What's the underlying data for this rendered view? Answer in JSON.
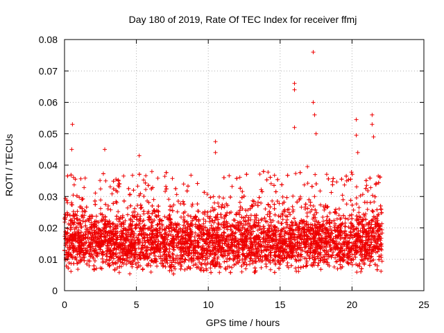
{
  "chart_data": {
    "type": "scatter",
    "title": "Day 180 of 2019, Rate Of TEC Index for receiver ffmj",
    "xlabel": "GPS time / hours",
    "ylabel": "ROTI / TECUs",
    "xlim": [
      0,
      25
    ],
    "ylim": [
      0,
      0.08
    ],
    "xticks": [
      "0",
      "5",
      "10",
      "15",
      "20",
      "25"
    ],
    "yticks": [
      "0",
      "0.01",
      "0.02",
      "0.03",
      "0.04",
      "0.05",
      "0.06",
      "0.07",
      "0.08"
    ],
    "grid": true,
    "marker": "plus",
    "series": [
      {
        "name": "ROTI",
        "color": "#ee0000",
        "x_range": [
          0,
          22.1
        ],
        "bulk_range": [
          0.005,
          0.028
        ],
        "notable_points": [
          {
            "x": 0.55,
            "y": 0.053
          },
          {
            "x": 0.5,
            "y": 0.045
          },
          {
            "x": 2.8,
            "y": 0.045
          },
          {
            "x": 5.2,
            "y": 0.043
          },
          {
            "x": 10.5,
            "y": 0.0475
          },
          {
            "x": 10.5,
            "y": 0.044
          },
          {
            "x": 16.0,
            "y": 0.066
          },
          {
            "x": 16.0,
            "y": 0.064
          },
          {
            "x": 16.0,
            "y": 0.052
          },
          {
            "x": 16.9,
            "y": 0.0395
          },
          {
            "x": 17.3,
            "y": 0.076
          },
          {
            "x": 17.3,
            "y": 0.06
          },
          {
            "x": 17.4,
            "y": 0.056
          },
          {
            "x": 17.5,
            "y": 0.05
          },
          {
            "x": 20.3,
            "y": 0.0545
          },
          {
            "x": 20.3,
            "y": 0.0495
          },
          {
            "x": 20.4,
            "y": 0.044
          },
          {
            "x": 21.4,
            "y": 0.056
          },
          {
            "x": 21.4,
            "y": 0.053
          },
          {
            "x": 21.5,
            "y": 0.049
          }
        ]
      }
    ]
  }
}
